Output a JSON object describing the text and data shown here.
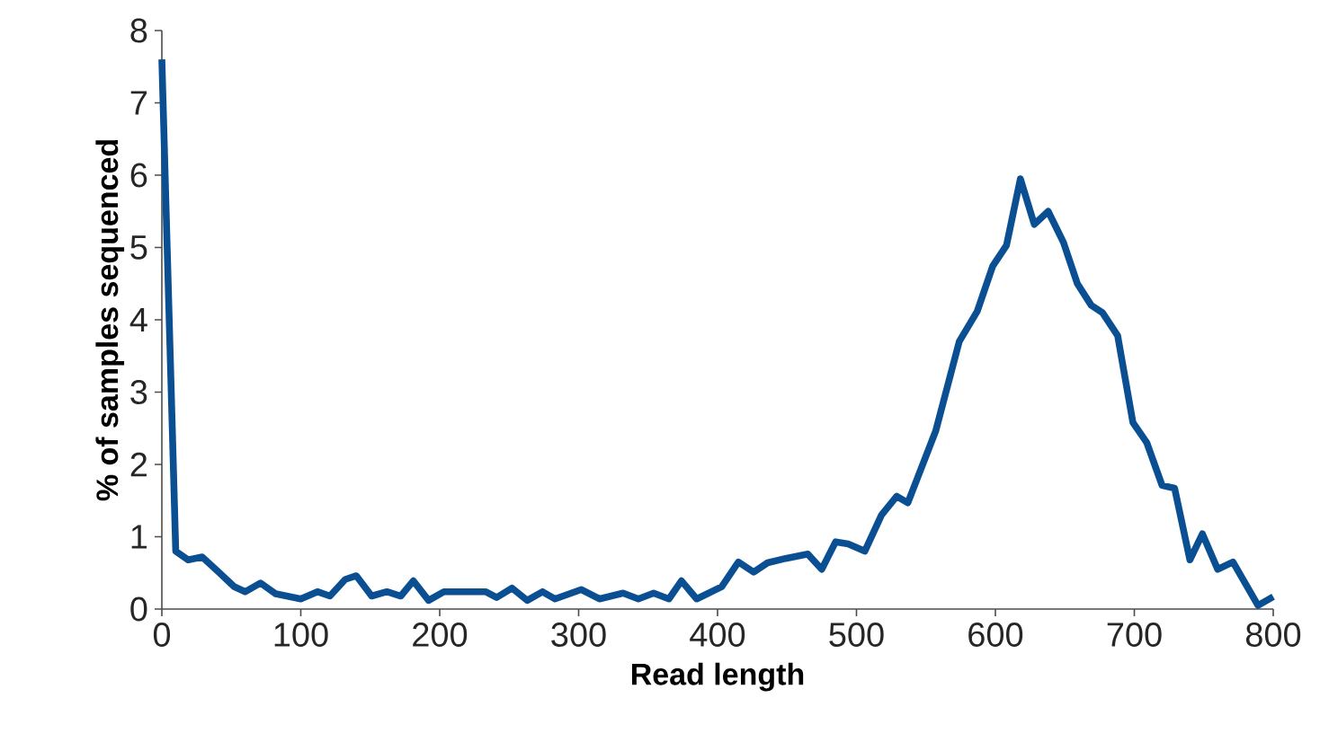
{
  "chart_data": {
    "type": "line",
    "xlabel": "Read length",
    "ylabel": "% of samples sequenced",
    "xlim": [
      0,
      800
    ],
    "ylim": [
      0,
      8
    ],
    "xticks": [
      0,
      100,
      200,
      300,
      400,
      500,
      600,
      700,
      800
    ],
    "yticks": [
      0,
      1,
      2,
      3,
      4,
      5,
      6,
      7,
      8
    ],
    "grid": false,
    "marker": "none",
    "line_style": "solid",
    "series": [
      {
        "color": "#0b4f93",
        "x": [
          0,
          10,
          19,
          29,
          41,
          52,
          60,
          71,
          82,
          100,
          112,
          121,
          132,
          140,
          151,
          162,
          172,
          181,
          192,
          203,
          213,
          223,
          233,
          241,
          252,
          263,
          274,
          283,
          302,
          315,
          332,
          343,
          354,
          365,
          374,
          385,
          403,
          415,
          426,
          436,
          449,
          465,
          475,
          485,
          494,
          506,
          518,
          529,
          537,
          557,
          574,
          587,
          598,
          608,
          618,
          628,
          638,
          649,
          659,
          669,
          677,
          688,
          699,
          709,
          720,
          729,
          740,
          749,
          760,
          771,
          789,
          800
        ],
        "values": [
          7.6,
          0.8,
          0.68,
          0.72,
          0.51,
          0.31,
          0.24,
          0.36,
          0.21,
          0.14,
          0.24,
          0.18,
          0.41,
          0.46,
          0.18,
          0.24,
          0.18,
          0.39,
          0.12,
          0.24,
          0.24,
          0.24,
          0.24,
          0.16,
          0.29,
          0.12,
          0.24,
          0.14,
          0.27,
          0.14,
          0.22,
          0.14,
          0.22,
          0.14,
          0.39,
          0.14,
          0.31,
          0.65,
          0.51,
          0.64,
          0.7,
          0.76,
          0.55,
          0.93,
          0.9,
          0.8,
          1.3,
          1.56,
          1.47,
          2.46,
          3.7,
          4.12,
          4.74,
          5.03,
          5.95,
          5.32,
          5.5,
          5.07,
          4.5,
          4.2,
          4.1,
          3.78,
          2.58,
          2.3,
          1.71,
          1.67,
          0.68,
          1.04,
          0.55,
          0.65,
          0.05,
          0.17
        ]
      }
    ]
  }
}
